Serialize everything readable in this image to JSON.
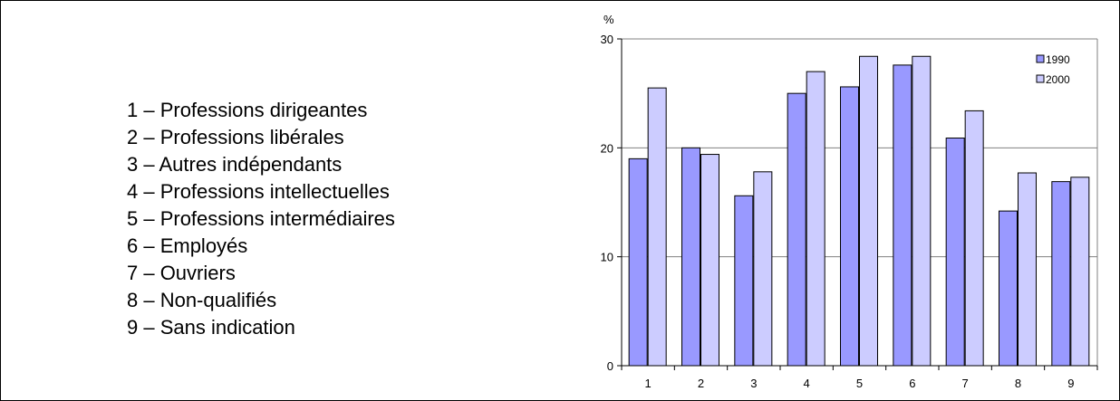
{
  "category_legend": [
    "1 – Professions dirigeantes",
    "2 – Professions libérales",
    "3 – Autres indépendants",
    "4 – Professions intellectuelles",
    "5 – Professions intermédiaires",
    "6 – Employés",
    "7 – Ouvriers",
    "8 – Non-qualifiés",
    "9 – Sans indication"
  ],
  "chart_data": {
    "type": "bar",
    "ylabel": "%",
    "ylim": [
      0,
      30
    ],
    "yticks": [
      0,
      10,
      20,
      30
    ],
    "grid": true,
    "legend_position": "top-right",
    "categories": [
      "1",
      "2",
      "3",
      "4",
      "5",
      "6",
      "7",
      "8",
      "9"
    ],
    "series": [
      {
        "name": "1990",
        "color": "#9999ff",
        "values": [
          19.0,
          20.0,
          15.6,
          25.0,
          25.6,
          27.6,
          20.9,
          14.2,
          16.9
        ]
      },
      {
        "name": "2000",
        "color": "#ccccff",
        "values": [
          25.5,
          19.4,
          17.8,
          27.0,
          28.4,
          28.4,
          23.4,
          17.7,
          17.3
        ]
      }
    ]
  }
}
